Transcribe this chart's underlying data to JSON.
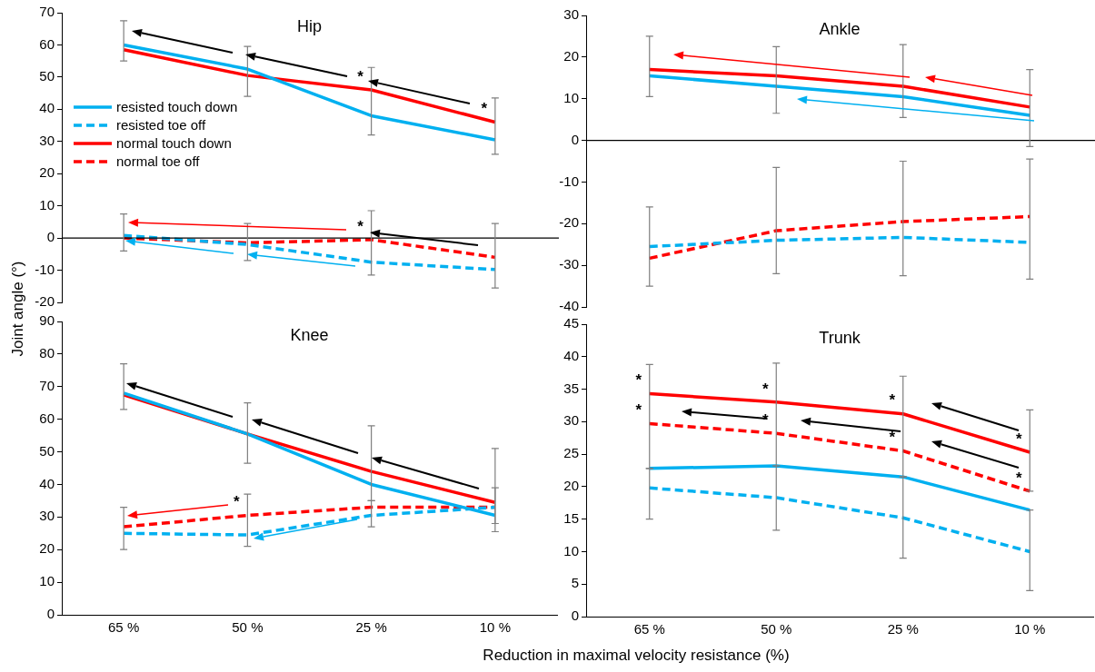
{
  "chart_data": [
    {
      "type": "line",
      "title": "Hip",
      "ylabel": "Joint angle (°)",
      "categories": [
        "65 %",
        "50 %",
        "25 %",
        "10 %"
      ],
      "ylim": [
        -20,
        70
      ],
      "yticks": [
        -20,
        -10,
        0,
        10,
        20,
        30,
        40,
        50,
        60,
        70
      ],
      "tick_labels": "y",
      "legend": "left",
      "marker": "none",
      "series": [
        {
          "name": "resisted touch down",
          "color": "#00b0f0",
          "line_style": "solid",
          "values": [
            60,
            52.5,
            38,
            30.5
          ],
          "errors": [
            [
              55,
              67.5
            ],
            [
              44,
              59.5
            ],
            [
              32,
              53
            ],
            [
              26,
              43.5
            ]
          ]
        },
        {
          "name": "resisted toe off",
          "color": "#00b0f0",
          "line_style": "dashed",
          "values": [
            0.8,
            -2,
            -7.5,
            -9.8
          ],
          "errors": [
            [
              -4,
              7.5
            ],
            [
              -7,
              4.5
            ],
            [
              -11.5,
              8.5
            ],
            [
              -15.5,
              4.5
            ]
          ]
        },
        {
          "name": "normal touch down",
          "color": "#ff0000",
          "line_style": "solid",
          "values": [
            58.5,
            50.5,
            46,
            36
          ]
        },
        {
          "name": "normal toe off",
          "color": "#ff0000",
          "line_style": "dashed",
          "values": [
            0,
            -1.5,
            -0.5,
            -6
          ]
        }
      ],
      "ref_lines": [
        {
          "axis": "y",
          "value": 0,
          "color": "#000000"
        }
      ],
      "annotations": [
        {
          "text": "*",
          "x": "25 %",
          "y": 46
        },
        {
          "text": "*",
          "x": "10 %",
          "y": 36
        },
        {
          "text": "*",
          "x": "25 %",
          "y": -0.5
        }
      ]
    },
    {
      "type": "line",
      "title": "Ankle",
      "categories": [
        "65 %",
        "50 %",
        "25 %",
        "10 %"
      ],
      "ylim": [
        -40,
        30
      ],
      "yticks": [
        -40,
        -30,
        -20,
        -10,
        0,
        10,
        20,
        30
      ],
      "tick_labels": "y",
      "marker": "none",
      "series": [
        {
          "color": "#00b0f0",
          "line_style": "solid",
          "values": [
            15.5,
            13,
            10.5,
            6
          ]
        },
        {
          "color": "#00b0f0",
          "line_style": "dashed",
          "values": [
            -25.5,
            -24,
            -23.3,
            -24.5
          ],
          "errors": [
            [
              -35,
              -16
            ],
            [
              -32,
              -6.5
            ],
            [
              -32.5,
              -5
            ],
            [
              -33.3,
              -4.5
            ]
          ]
        },
        {
          "color": "#ff0000",
          "line_style": "solid",
          "values": [
            17,
            15.5,
            13,
            8
          ],
          "errors": [
            [
              10.5,
              25
            ],
            [
              6.5,
              22.5
            ],
            [
              5.5,
              23
            ],
            [
              -1.5,
              17
            ]
          ]
        },
        {
          "color": "#ff0000",
          "line_style": "dashed",
          "values": [
            -28.3,
            -21.7,
            -19.5,
            -18.3
          ]
        }
      ],
      "ref_lines": [
        {
          "axis": "y",
          "value": 0,
          "color": "#000000"
        }
      ]
    },
    {
      "type": "line",
      "title": "Knee",
      "xlabel": "Reduction in maximal velocity resistance (%)",
      "categories": [
        "65 %",
        "50 %",
        "25 %",
        "10 %"
      ],
      "ylim": [
        0,
        90
      ],
      "yticks": [
        0,
        10,
        20,
        30,
        40,
        50,
        60,
        70,
        80,
        90
      ],
      "marker": "none",
      "series": [
        {
          "color": "#00b0f0",
          "line_style": "solid",
          "values": [
            68,
            55.5,
            40,
            30.5
          ]
        },
        {
          "color": "#00b0f0",
          "line_style": "dashed",
          "values": [
            25,
            24.5,
            30.5,
            33
          ],
          "errors": [
            [
              20,
              33
            ],
            [
              21,
              37
            ],
            [
              27,
              35
            ],
            [
              25.5,
              39
            ]
          ]
        },
        {
          "color": "#ff0000",
          "line_style": "solid",
          "values": [
            67.5,
            55.5,
            44,
            34.5
          ],
          "errors": [
            [
              63,
              77
            ],
            [
              46.5,
              65
            ],
            [
              35,
              58
            ],
            [
              28,
              51
            ]
          ]
        },
        {
          "color": "#ff0000",
          "line_style": "dashed",
          "values": [
            27,
            30.5,
            33,
            33
          ]
        }
      ],
      "annotations": [
        {
          "text": "*",
          "x": "50 %",
          "y": 30.5
        }
      ]
    },
    {
      "type": "line",
      "title": "Trunk",
      "categories": [
        "65 %",
        "50 %",
        "25 %",
        "10 %"
      ],
      "ylim": [
        0,
        45
      ],
      "yticks": [
        0,
        5,
        10,
        15,
        20,
        25,
        30,
        35,
        40,
        45
      ],
      "marker": "none",
      "series": [
        {
          "color": "#00b0f0",
          "line_style": "solid",
          "values": [
            22.8,
            23.2,
            21.5,
            16.4
          ]
        },
        {
          "color": "#00b0f0",
          "line_style": "dashed",
          "values": [
            19.8,
            18.3,
            15.2,
            10
          ],
          "errors": [
            [
              15,
              22.8
            ],
            [
              13.3,
              23.2
            ],
            [
              9,
              21.5
            ],
            [
              4,
              16.4
            ]
          ]
        },
        {
          "color": "#ff0000",
          "line_style": "solid",
          "values": [
            34.3,
            33,
            31.2,
            25.3
          ],
          "errors": [
            [
              22.8,
              38.8
            ],
            [
              23.2,
              39
            ],
            [
              21.5,
              37
            ],
            [
              19.3,
              31.8
            ]
          ]
        },
        {
          "color": "#ff0000",
          "line_style": "dashed",
          "values": [
            29.7,
            28.2,
            25.5,
            19.3
          ]
        }
      ],
      "annotations": [
        {
          "text": "*",
          "x": "65 %",
          "y": 34.3
        },
        {
          "text": "*",
          "x": "65 %",
          "y": 29.7
        },
        {
          "text": "*",
          "x": "50 %",
          "y": 33
        },
        {
          "text": "*",
          "x": "50 %",
          "y": 28.2
        },
        {
          "text": "*",
          "x": "25 %",
          "y": 31.2
        },
        {
          "text": "*",
          "x": "25 %",
          "y": 25.5
        },
        {
          "text": "*",
          "x": "10 %",
          "y": 25.3
        },
        {
          "text": "*",
          "x": "10 %",
          "y": 19.3
        }
      ]
    }
  ]
}
